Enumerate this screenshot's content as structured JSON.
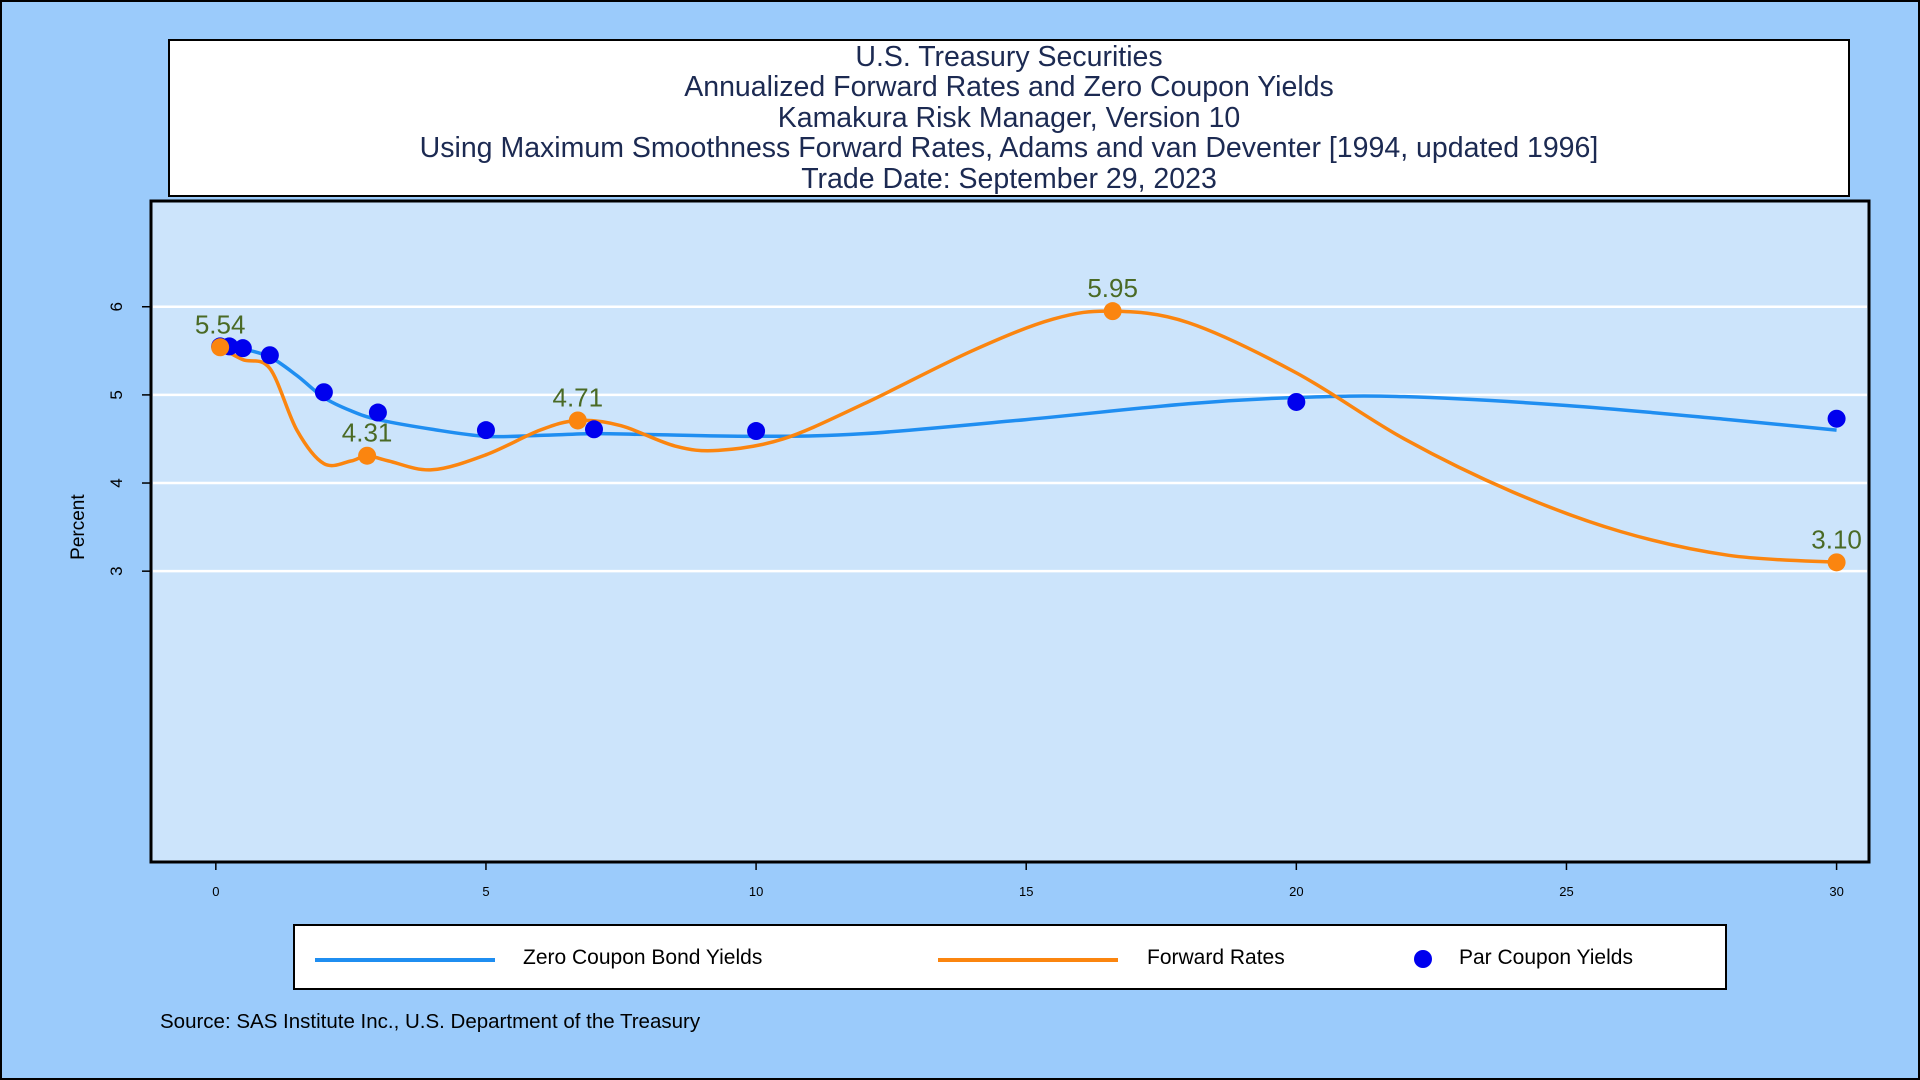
{
  "colors": {
    "background": "#9bcbfb",
    "plot_background": "#cce4fb",
    "zero_coupon": "#1f8ef1",
    "forward": "#fb850f",
    "par": "#0000ee",
    "annotation": "#4a6a25",
    "title_text": "#1c2a52"
  },
  "title_lines": [
    "U.S. Treasury Securities",
    "Annualized Forward Rates and Zero Coupon Yields",
    "Kamakura Risk Manager, Version 10",
    "Using Maximum Smoothness Forward Rates, Adams and van Deventer [1994, updated 1996]",
    "Trade Date: September 29, 2023"
  ],
  "legend": {
    "zero_label": "Zero Coupon Bond Yields",
    "forward_label": "Forward Rates",
    "par_label": "Par Coupon Yields"
  },
  "source": "Source: SAS Institute Inc., U.S. Department of the Treasury",
  "chart_data": {
    "type": "line",
    "ylabel": "Percent",
    "xlabel": "",
    "xlim": [
      -1.2,
      30.6
    ],
    "ylim": [
      -0.3,
      7.2
    ],
    "x_ticks": [
      0,
      5,
      10,
      15,
      20,
      25,
      30
    ],
    "y_ticks": [
      3,
      4,
      5,
      6
    ],
    "grid": "horizontal",
    "legend_position": "bottom",
    "series": [
      {
        "name": "Zero Coupon Bond Yields",
        "style": "line",
        "x": [
          0.08,
          0.5,
          1,
          1.5,
          2,
          2.5,
          3,
          4,
          5,
          6,
          7,
          8,
          10,
          12,
          15,
          18,
          20,
          22,
          25,
          28,
          30
        ],
        "y": [
          5.55,
          5.52,
          5.43,
          5.22,
          4.97,
          4.82,
          4.72,
          4.61,
          4.53,
          4.54,
          4.56,
          4.55,
          4.53,
          4.56,
          4.72,
          4.9,
          4.97,
          4.98,
          4.88,
          4.72,
          4.6
        ]
      },
      {
        "name": "Forward Rates",
        "style": "line",
        "x": [
          0.08,
          0.5,
          1,
          1.5,
          2,
          2.5,
          2.8,
          3.2,
          4,
          5,
          6,
          6.7,
          7.5,
          8.5,
          9.3,
          10.5,
          12,
          14,
          15.5,
          16.6,
          18,
          20,
          22,
          24,
          26,
          28,
          30
        ],
        "y": [
          5.54,
          5.4,
          5.3,
          4.6,
          4.22,
          4.25,
          4.31,
          4.25,
          4.15,
          4.32,
          4.6,
          4.71,
          4.65,
          4.42,
          4.37,
          4.5,
          4.9,
          5.5,
          5.86,
          5.95,
          5.82,
          5.25,
          4.5,
          3.9,
          3.45,
          3.18,
          3.1
        ]
      },
      {
        "name": "Par Coupon Yields",
        "style": "points",
        "x": [
          0.08,
          0.25,
          0.5,
          1,
          2,
          3,
          5,
          7,
          10,
          20,
          30
        ],
        "y": [
          5.55,
          5.55,
          5.53,
          5.45,
          5.03,
          4.8,
          4.6,
          4.61,
          4.59,
          4.92,
          4.73
        ]
      }
    ],
    "annotations": [
      {
        "x": 0.08,
        "y": 5.54,
        "label": "5.54"
      },
      {
        "x": 2.8,
        "y": 4.31,
        "label": "4.31"
      },
      {
        "x": 6.7,
        "y": 4.71,
        "label": "4.71"
      },
      {
        "x": 16.6,
        "y": 5.95,
        "label": "5.95"
      },
      {
        "x": 30,
        "y": 3.1,
        "label": "3.10"
      }
    ]
  }
}
